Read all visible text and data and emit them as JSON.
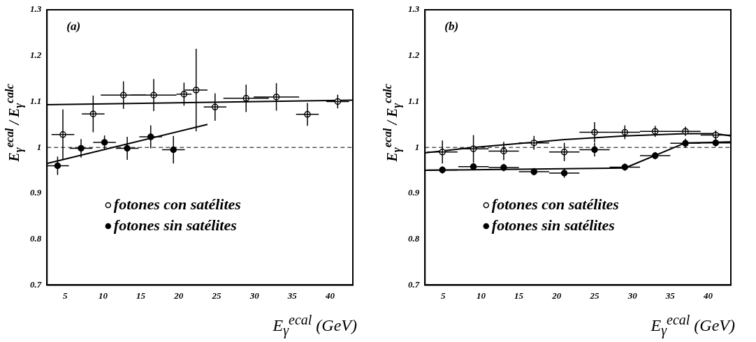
{
  "chart_data": [
    {
      "type": "scatter",
      "annotations": [
        "(a)"
      ],
      "xlabel": "E$_{γ}$$^{ecal}$ (GeV)",
      "ylabel": "E$_{γ}$$^{ecal}$ / E$_{γ}$$^{calc}$",
      "xlim": [
        2.6,
        43
      ],
      "xticks": [
        5,
        10,
        15,
        20,
        25,
        30,
        35,
        40
      ],
      "ylim": [
        0.7,
        1.3
      ],
      "yticks": [
        0.7,
        0.8,
        0.9,
        1,
        1.1,
        1.2,
        1.3
      ],
      "grid": false,
      "legend": "bottom left",
      "marker": "circle",
      "ref_lines": [
        {
          "axis": "y",
          "value": 1,
          "color": "#000000",
          "line_style": "dashed"
        }
      ],
      "series": [
        {
          "name": "fotones con satélites",
          "color": "#000000",
          "x": [
            4.7,
            8.7,
            12.7,
            16.7,
            20.7,
            22.3,
            24.8,
            28.9,
            32.9,
            37.0,
            41.0
          ],
          "values": [
            1.028,
            1.073,
            1.114,
            1.114,
            1.116,
            1.125,
            1.088,
            1.107,
            1.11,
            1.072,
            1.1
          ],
          "errors": [
            0.055,
            0.04,
            0.03,
            0.035,
            0.025,
            0.09,
            0.03,
            0.03,
            0.03,
            0.025,
            0.015
          ],
          "xerrors": [
            1.5,
            1.5,
            3,
            3,
            1,
            1.5,
            1.5,
            3,
            3,
            1.5,
            1.5
          ]
        },
        {
          "name": "fotones sin satélites",
          "color": "#000000",
          "x": [
            4.0,
            7.1,
            10.2,
            13.2,
            16.3,
            19.3
          ],
          "values": [
            0.96,
            0.998,
            1.011,
            0.998,
            1.023,
            0.995
          ],
          "errors": [
            0.02,
            0.02,
            0.015,
            0.025,
            0.025,
            0.03
          ],
          "xerrors": [
            1.5,
            1.5,
            1.5,
            1.5,
            1.5,
            1.5
          ]
        },
        {
          "type": "line",
          "color": "#000000",
          "marker": "none",
          "x": [
            2.6,
            43
          ],
          "values": [
            1.093,
            1.103
          ]
        },
        {
          "type": "line",
          "color": "#000000",
          "marker": "none",
          "x": [
            2.6,
            23.8
          ],
          "values": [
            0.965,
            1.05
          ]
        }
      ]
    },
    {
      "type": "scatter",
      "annotations": [
        "(b)"
      ],
      "xlabel": "E$_{γ}$$^{ecal}$ (GeV)",
      "ylabel": "E$_{γ}$$^{ecal}$ / E$_{γ}$$^{calc}$",
      "xlim": [
        2.6,
        43
      ],
      "xticks": [
        5,
        10,
        15,
        20,
        25,
        30,
        35,
        40
      ],
      "ylim": [
        0.7,
        1.3
      ],
      "yticks": [
        0.7,
        0.8,
        0.9,
        1,
        1.1,
        1.2,
        1.3
      ],
      "grid": false,
      "legend": "bottom left",
      "marker": "circle",
      "ref_lines": [
        {
          "axis": "y",
          "value": 1,
          "color": "#000000",
          "line_style": "dashed"
        }
      ],
      "series": [
        {
          "name": "fotones con satélites",
          "color": "#000000",
          "x": [
            4.9,
            9.0,
            13.0,
            17.0,
            21.0,
            25.0,
            29.0,
            33.0,
            37.0,
            41.0
          ],
          "values": [
            0.99,
            0.997,
            0.992,
            1.01,
            0.99,
            1.033,
            1.033,
            1.035,
            1.035,
            1.027
          ],
          "errors": [
            0.025,
            0.03,
            0.02,
            0.015,
            0.02,
            0.022,
            0.015,
            0.012,
            0.01,
            0.01
          ],
          "xerrors": [
            2,
            2,
            2,
            2,
            2,
            2,
            2,
            2,
            2,
            2
          ]
        },
        {
          "name": "fotones sin satélites",
          "color": "#000000",
          "x": [
            4.9,
            9.0,
            13.0,
            17.0,
            21.0,
            25.0,
            29.0,
            33.0,
            37.0,
            41.0
          ],
          "values": [
            0.951,
            0.958,
            0.956,
            0.947,
            0.944,
            0.995,
            0.957,
            0.982,
            1.009,
            1.01
          ],
          "errors": [
            0.008,
            0.008,
            0.008,
            0.008,
            0.01,
            0.015,
            0.008,
            0.008,
            0.01,
            0.008
          ],
          "xerrors": [
            2,
            2,
            2,
            2,
            2,
            2,
            2,
            2,
            2,
            2
          ]
        },
        {
          "type": "line",
          "color": "#000000",
          "marker": "none",
          "x": [
            2.6,
            9.0,
            21.0,
            29.0,
            37.0,
            41.0,
            43.0
          ],
          "values": [
            0.988,
            1.0,
            1.017,
            1.025,
            1.03,
            1.03,
            1.025
          ]
        },
        {
          "type": "line",
          "color": "#000000",
          "marker": "none",
          "x": [
            2.6,
            29.0,
            37.0,
            43.0
          ],
          "values": [
            0.95,
            0.955,
            1.01,
            1.012
          ]
        }
      ]
    }
  ]
}
